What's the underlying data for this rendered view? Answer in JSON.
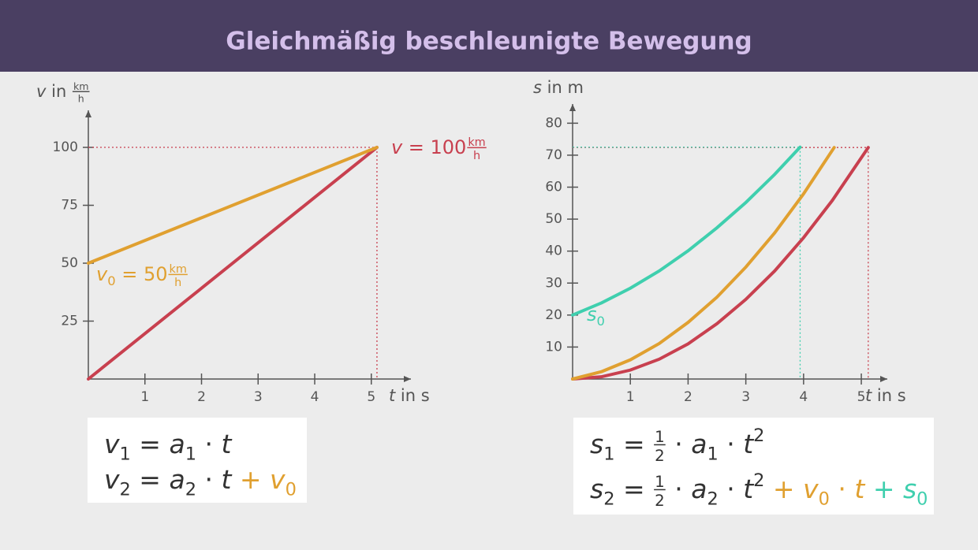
{
  "title": "Gleichmäßig beschleunigte Bewegung",
  "chart_data": [
    {
      "type": "line",
      "x_label": [
        {
          "t": "t",
          "i": true
        },
        {
          "t": " in s"
        }
      ],
      "y_label": [
        {
          "t": "v",
          "i": true
        },
        {
          "t": " in "
        },
        {
          "frac": [
            "km",
            "h"
          ]
        }
      ],
      "xlim": [
        0,
        5.7
      ],
      "ylim": [
        0,
        116
      ],
      "xticks": [
        1,
        2,
        3,
        4,
        5
      ],
      "yticks": [
        25,
        50,
        75,
        100
      ],
      "series": [
        {
          "color": "#c8404f",
          "x": [
            0,
            5.1
          ],
          "values": [
            0,
            100
          ],
          "guide": true
        },
        {
          "color": "#e0a030",
          "x": [
            0,
            5.1
          ],
          "values": [
            50,
            100
          ]
        }
      ],
      "annotations": [
        {
          "color": "#c8404f",
          "x": 5.1,
          "y": 100,
          "tokens": [
            {
              "t": "v",
              "i": true
            },
            {
              "t": " = 100"
            },
            {
              "frac": [
                "km",
                "h"
              ]
            }
          ]
        },
        {
          "color": "#e0a030",
          "x": 0,
          "y": 50,
          "tokens": [
            {
              "t": "v",
              "i": true
            },
            {
              "sub": "0"
            },
            {
              "t": " = 50"
            },
            {
              "frac": [
                "km",
                "h"
              ]
            }
          ]
        }
      ],
      "formulas": [
        [
          {
            "t": "v",
            "i": true
          },
          {
            "sub": "1"
          },
          {
            "t": " = "
          },
          {
            "t": "a",
            "i": true
          },
          {
            "sub": "1"
          },
          {
            "t": " · "
          },
          {
            "t": "t",
            "i": true
          }
        ],
        [
          {
            "t": "v",
            "i": true
          },
          {
            "sub": "2"
          },
          {
            "t": " = "
          },
          {
            "t": "a",
            "i": true
          },
          {
            "sub": "2"
          },
          {
            "t": " · "
          },
          {
            "t": "t",
            "i": true
          },
          {
            "t": " + ",
            "color": "#e0a030"
          },
          {
            "t": "v",
            "i": true,
            "color": "#e0a030"
          },
          {
            "sub": "0",
            "color": "#e0a030"
          }
        ]
      ]
    },
    {
      "type": "line",
      "x_label": [
        {
          "t": "t",
          "i": true
        },
        {
          "t": " in s"
        }
      ],
      "y_label": [
        {
          "t": "s",
          "i": true
        },
        {
          "t": " in m"
        }
      ],
      "xlim": [
        0,
        5.45
      ],
      "ylim": [
        0,
        86
      ],
      "xticks": [
        1,
        2,
        3,
        4,
        5
      ],
      "yticks": [
        10,
        20,
        30,
        40,
        50,
        60,
        70,
        80
      ],
      "series": [
        {
          "color": "#c8404f",
          "x": [
            0,
            0.5,
            1,
            1.5,
            2,
            2.5,
            3,
            3.5,
            4,
            4.5,
            5.12
          ],
          "values": [
            0,
            0.7,
            2.8,
            6.2,
            11.0,
            17.3,
            24.9,
            33.8,
            44.2,
            55.9,
            72.4
          ],
          "guide": true
        },
        {
          "color": "#e0a030",
          "x": [
            0,
            0.5,
            1,
            1.5,
            2,
            2.5,
            3,
            3.5,
            4,
            4.53
          ],
          "values": [
            0,
            2.3,
            6.0,
            11.1,
            17.7,
            25.6,
            35.0,
            45.7,
            57.9,
            72.4
          ]
        },
        {
          "color": "#3fcfae",
          "x": [
            0,
            0.5,
            1,
            1.5,
            2,
            2.5,
            3,
            3.5,
            3.94
          ],
          "values": [
            20,
            23.8,
            28.4,
            33.8,
            40.1,
            47.3,
            55.2,
            64.0,
            72.5
          ],
          "guide": true
        }
      ],
      "annotations": [
        {
          "color": "#3fcfae",
          "x": 0,
          "y": 20,
          "tokens": [
            {
              "t": "s",
              "i": true
            },
            {
              "sub": "0"
            }
          ]
        }
      ],
      "formulas": [
        [
          {
            "t": "s",
            "i": true
          },
          {
            "sub": "1"
          },
          {
            "t": " = "
          },
          {
            "frac": [
              "1",
              "2"
            ]
          },
          {
            "t": " · "
          },
          {
            "t": "a",
            "i": true
          },
          {
            "sub": "1"
          },
          {
            "t": " · "
          },
          {
            "t": "t",
            "i": true
          },
          {
            "sup": "2"
          }
        ],
        [
          {
            "t": "s",
            "i": true
          },
          {
            "sub": "2"
          },
          {
            "t": " = "
          },
          {
            "frac": [
              "1",
              "2"
            ]
          },
          {
            "t": " · "
          },
          {
            "t": "a",
            "i": true
          },
          {
            "sub": "2"
          },
          {
            "t": " · "
          },
          {
            "t": "t",
            "i": true
          },
          {
            "sup": "2"
          },
          {
            "t": " + ",
            "color": "#e0a030"
          },
          {
            "t": "v",
            "i": true,
            "color": "#e0a030"
          },
          {
            "sub": "0",
            "color": "#e0a030"
          },
          {
            "t": " · ",
            "color": "#e0a030"
          },
          {
            "t": "t",
            "i": true,
            "color": "#e0a030"
          },
          {
            "t": " + ",
            "color": "#3fcfae"
          },
          {
            "t": "s",
            "i": true,
            "color": "#3fcfae"
          },
          {
            "sub": "0",
            "color": "#3fcfae"
          }
        ]
      ]
    }
  ]
}
